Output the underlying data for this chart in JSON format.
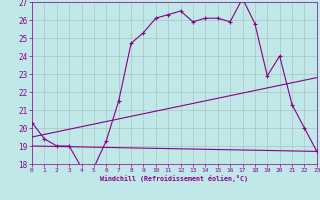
{
  "xlabel": "Windchill (Refroidissement éolien,°C)",
  "xlim": [
    0,
    23
  ],
  "ylim": [
    18,
    27
  ],
  "yticks": [
    18,
    19,
    20,
    21,
    22,
    23,
    24,
    25,
    26,
    27
  ],
  "xticks": [
    0,
    1,
    2,
    3,
    4,
    5,
    6,
    7,
    8,
    9,
    10,
    11,
    12,
    13,
    14,
    15,
    16,
    17,
    18,
    19,
    20,
    21,
    22,
    23
  ],
  "bg_color": "#c0e8e8",
  "line_color": "#880088",
  "grid_color": "#aabbbb",
  "series1_x": [
    0,
    1,
    2,
    3,
    4,
    5,
    6,
    7,
    8,
    9,
    10,
    11,
    12,
    13,
    14,
    15,
    16,
    17,
    18,
    19,
    20,
    21,
    22,
    23
  ],
  "series1_y": [
    20.3,
    19.4,
    19.0,
    19.0,
    17.8,
    17.8,
    19.3,
    21.5,
    24.7,
    25.3,
    26.1,
    26.3,
    26.5,
    25.9,
    26.1,
    26.1,
    25.9,
    27.2,
    25.8,
    22.9,
    24.0,
    21.3,
    20.0,
    18.7
  ],
  "series2_x": [
    0,
    23
  ],
  "series2_y": [
    19.0,
    18.7
  ],
  "series3_x": [
    0,
    23
  ],
  "series3_y": [
    19.5,
    22.8
  ]
}
